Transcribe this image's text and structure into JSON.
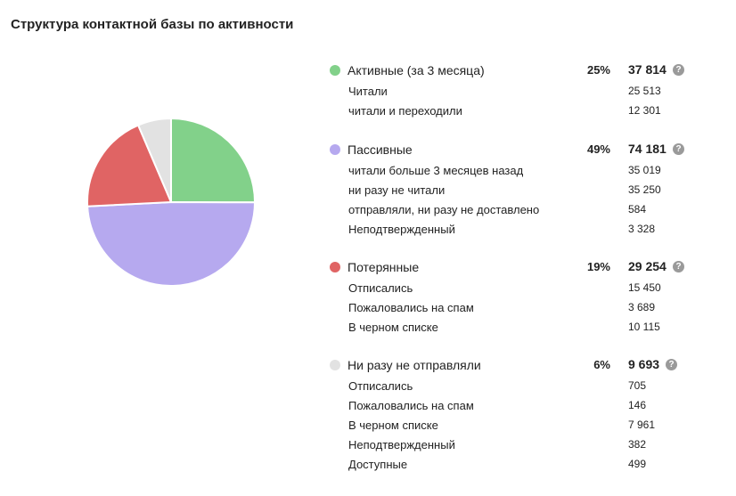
{
  "header": {
    "title": "Структура контактной базы по активности"
  },
  "colors": {
    "active": "#82d18a",
    "passive": "#b6a9ef",
    "lost": "#e06464",
    "never": "#e2e2e2"
  },
  "help_icon_glyph": "?",
  "chart_data": {
    "type": "pie",
    "title": "Структура контактной базы по активности",
    "slices": [
      {
        "key": "active",
        "label": "Активные (за 3 месяца)",
        "percent": "25%",
        "value": 37814,
        "value_label": "37 814",
        "color": "#82d18a"
      },
      {
        "key": "passive",
        "label": "Пассивные",
        "percent": "49%",
        "value": 74181,
        "value_label": "74 181",
        "color": "#b6a9ef"
      },
      {
        "key": "lost",
        "label": "Потерянные",
        "percent": "19%",
        "value": 29254,
        "value_label": "29 254",
        "color": "#e06464"
      },
      {
        "key": "never",
        "label": "Ни разу не отправляли",
        "percent": "6%",
        "value": 9693,
        "value_label": "9 693",
        "color": "#e2e2e2"
      }
    ]
  },
  "groups": [
    {
      "name": "Активные (за 3 месяца)",
      "percent": "25%",
      "total": "37 814",
      "color": "#82d18a",
      "items": [
        {
          "name": "Читали",
          "value": "25 513"
        },
        {
          "name": "читали и переходили",
          "value": "12 301"
        }
      ]
    },
    {
      "name": "Пассивные",
      "percent": "49%",
      "total": "74 181",
      "color": "#b6a9ef",
      "items": [
        {
          "name": "читали больше 3 месяцев назад",
          "value": "35 019"
        },
        {
          "name": "ни разу не читали",
          "value": "35 250"
        },
        {
          "name": "отправляли, ни разу не доставлено",
          "value": "584"
        },
        {
          "name": "Неподтвержденный",
          "value": "3 328"
        }
      ]
    },
    {
      "name": "Потерянные",
      "percent": "19%",
      "total": "29 254",
      "color": "#e06464",
      "items": [
        {
          "name": "Отписались",
          "value": "15 450"
        },
        {
          "name": "Пожаловались на спам",
          "value": "3 689"
        },
        {
          "name": "В черном списке",
          "value": "10 115"
        }
      ]
    },
    {
      "name": "Ни разу не отправляли",
      "percent": "6%",
      "total": "9 693",
      "color": "#e2e2e2",
      "items": [
        {
          "name": "Отписались",
          "value": "705"
        },
        {
          "name": "Пожаловались на спам",
          "value": "146"
        },
        {
          "name": "В черном списке",
          "value": "7 961"
        },
        {
          "name": "Неподтвержденный",
          "value": "382"
        },
        {
          "name": "Доступные",
          "value": "499"
        }
      ]
    }
  ]
}
